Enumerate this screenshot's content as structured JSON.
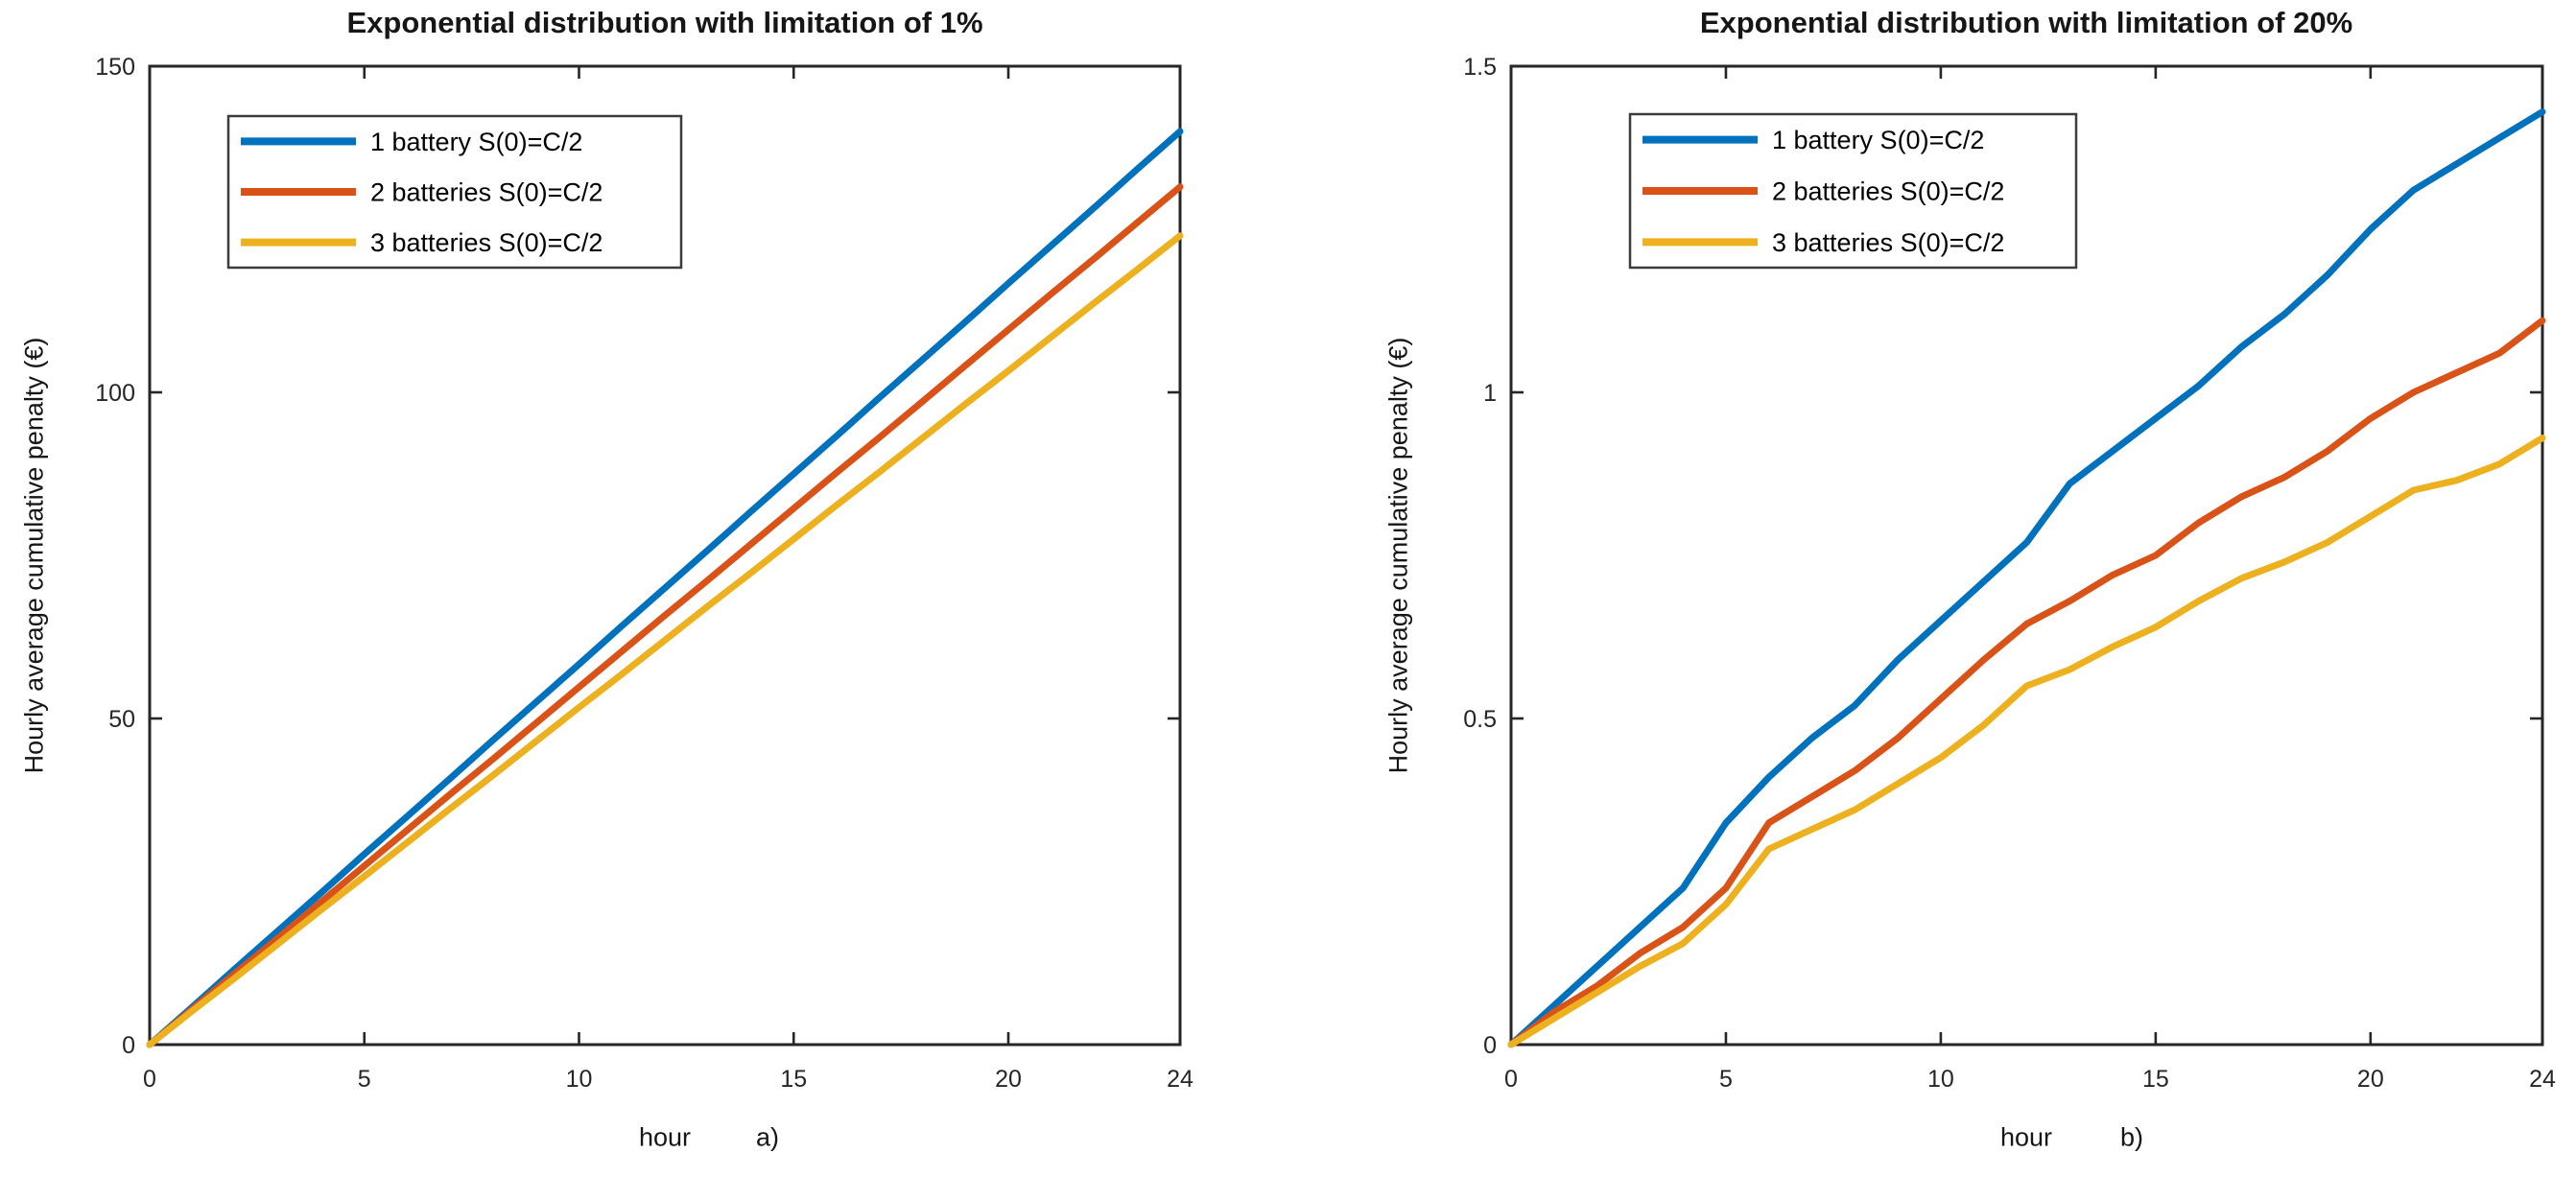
{
  "figure": {
    "background": "#ffffff",
    "axes_color": "#262626",
    "text_color": "#161616",
    "series_colors": [
      "#0072BD",
      "#D95319",
      "#EDB120"
    ]
  },
  "chart_data": [
    {
      "type": "line",
      "title": "Exponential distribution with limitation of 1%",
      "xlabel": "hour",
      "panel_label": "a)",
      "ylabel": "Hourly average cumulative penalty (€)",
      "xlim": [
        0,
        24
      ],
      "ylim": [
        0,
        150
      ],
      "xticks": [
        0,
        5,
        10,
        15,
        20,
        24
      ],
      "yticks": [
        0,
        50,
        100,
        150
      ],
      "grid": "off",
      "legend_position": "upper-left",
      "x": [
        0,
        1,
        2,
        3,
        4,
        5,
        6,
        7,
        8,
        9,
        10,
        11,
        12,
        13,
        14,
        15,
        16,
        17,
        18,
        19,
        20,
        21,
        22,
        23,
        24
      ],
      "series": [
        {
          "name": "1 battery S(0)=C/2",
          "color": "#0072BD",
          "values": [
            0,
            5.8,
            11.7,
            17.5,
            23.3,
            29.2,
            35.0,
            40.8,
            46.7,
            52.5,
            58.3,
            64.2,
            70.0,
            75.8,
            81.7,
            87.5,
            93.3,
            99.2,
            105.0,
            110.8,
            116.7,
            122.5,
            128.3,
            134.2,
            140.0
          ]
        },
        {
          "name": "2 batteries S(0)=C/2",
          "color": "#D95319",
          "values": [
            0,
            5.5,
            11.0,
            16.4,
            21.9,
            27.4,
            32.9,
            38.4,
            43.8,
            49.3,
            54.8,
            60.3,
            65.8,
            71.2,
            76.7,
            82.2,
            87.7,
            93.1,
            98.6,
            104.1,
            109.6,
            115.1,
            120.5,
            126.0,
            131.5
          ]
        },
        {
          "name": "3 batteries S(0)=C/2",
          "color": "#EDB120",
          "values": [
            0,
            5.2,
            10.3,
            15.5,
            20.7,
            25.8,
            31.0,
            36.2,
            41.3,
            46.5,
            51.7,
            56.8,
            62.0,
            67.2,
            72.3,
            77.5,
            82.7,
            87.8,
            93.0,
            98.2,
            103.3,
            108.5,
            113.7,
            118.8,
            124.0
          ]
        }
      ]
    },
    {
      "type": "line",
      "title": "Exponential distribution with limitation of 20%",
      "xlabel": "hour",
      "panel_label": "b)",
      "ylabel": "Hourly average cumulative penalty (€)",
      "xlim": [
        0,
        24
      ],
      "ylim": [
        0,
        1.5
      ],
      "xticks": [
        0,
        5,
        10,
        15,
        20,
        24
      ],
      "yticks": [
        0,
        0.5,
        1,
        1.5
      ],
      "grid": "off",
      "legend_position": "upper-left",
      "x": [
        0,
        1,
        2,
        3,
        4,
        5,
        6,
        7,
        8,
        9,
        10,
        11,
        12,
        13,
        14,
        15,
        16,
        17,
        18,
        19,
        20,
        21,
        22,
        23,
        24
      ],
      "series": [
        {
          "name": "1 battery S(0)=C/2",
          "color": "#0072BD",
          "values": [
            0,
            0.06,
            0.12,
            0.18,
            0.24,
            0.34,
            0.41,
            0.47,
            0.52,
            0.59,
            0.65,
            0.71,
            0.77,
            0.86,
            0.91,
            0.96,
            1.01,
            1.07,
            1.12,
            1.18,
            1.25,
            1.31,
            1.35,
            1.39,
            1.43
          ]
        },
        {
          "name": "2 batteries S(0)=C/2",
          "color": "#D95319",
          "values": [
            0,
            0.05,
            0.09,
            0.14,
            0.18,
            0.24,
            0.34,
            0.38,
            0.42,
            0.47,
            0.53,
            0.59,
            0.645,
            0.68,
            0.72,
            0.75,
            0.8,
            0.84,
            0.87,
            0.91,
            0.96,
            1.0,
            1.03,
            1.06,
            1.11
          ]
        },
        {
          "name": "3 batteries S(0)=C/2",
          "color": "#EDB120",
          "values": [
            0,
            0.04,
            0.08,
            0.12,
            0.155,
            0.215,
            0.3,
            0.33,
            0.36,
            0.4,
            0.44,
            0.49,
            0.55,
            0.575,
            0.61,
            0.64,
            0.68,
            0.715,
            0.74,
            0.77,
            0.81,
            0.85,
            0.865,
            0.89,
            0.93
          ]
        }
      ]
    }
  ]
}
